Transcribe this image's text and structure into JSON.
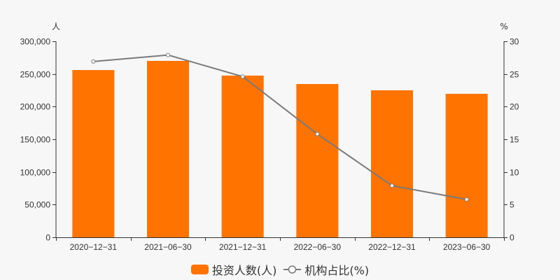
{
  "chart_data": {
    "type": "bar",
    "categories": [
      "2020-12-31",
      "2021-06-30",
      "2021-12-31",
      "2022-06-30",
      "2022-12-31",
      "2023-06-30"
    ],
    "series": [
      {
        "name": "投资人数(人)",
        "type": "bar",
        "axis": "left",
        "color": "#ff7300",
        "values": [
          256000,
          270000,
          247500,
          234600,
          225000,
          219600
        ]
      },
      {
        "name": "机构占比(%)",
        "type": "line",
        "axis": "right",
        "color": "#7a7a7a",
        "values": [
          26.9,
          27.9,
          24.6,
          15.8,
          7.9,
          5.8
        ]
      }
    ],
    "left_axis": {
      "unit": "人",
      "ylim": [
        0,
        300000
      ],
      "ticks": [
        0,
        50000,
        100000,
        150000,
        200000,
        250000,
        300000
      ],
      "tick_labels": [
        "0",
        "50,000",
        "100,000",
        "150,000",
        "200,000",
        "250,000",
        "300,000"
      ]
    },
    "right_axis": {
      "unit": "%",
      "ylim": [
        0,
        30
      ],
      "ticks": [
        0,
        5,
        10,
        15,
        20,
        25,
        30
      ],
      "tick_labels": [
        "0",
        "5",
        "10",
        "15",
        "20",
        "25",
        "30"
      ]
    },
    "grid": false,
    "legend_position": "bottom",
    "title": "",
    "xlabel": "",
    "ylabel": "人"
  },
  "legend": [
    {
      "label": "投资人数(人)",
      "kind": "bar",
      "color": "#ff7300"
    },
    {
      "label": "机构占比(%)",
      "kind": "line",
      "color": "#7a7a7a"
    }
  ]
}
